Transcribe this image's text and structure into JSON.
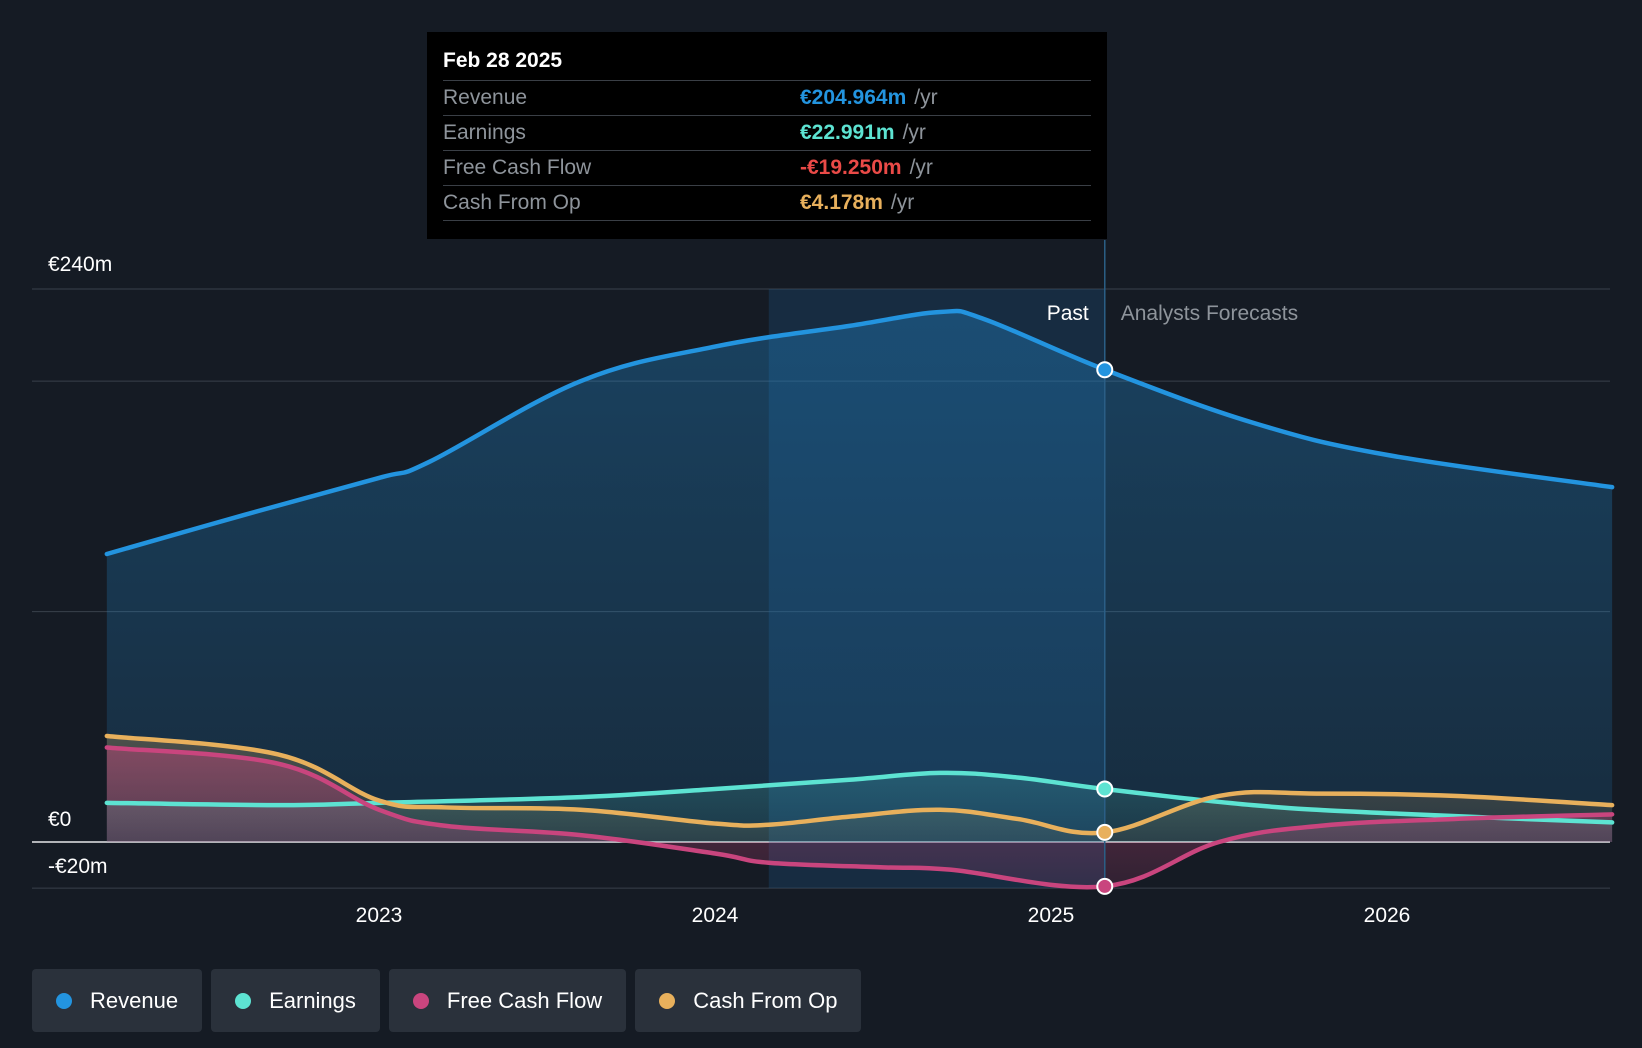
{
  "colors": {
    "revenue": "#2394df",
    "earnings": "#5de3d2",
    "fcf": "#c9457e",
    "cfo": "#e8b05c",
    "fcf_text": "#ea4a47"
  },
  "tooltip": {
    "date": "Feb 28 2025",
    "rows": [
      {
        "label": "Revenue",
        "value": "€204.964m",
        "unit": "/yr"
      },
      {
        "label": "Earnings",
        "value": "€22.991m",
        "unit": "/yr"
      },
      {
        "label": "Free Cash Flow",
        "value": "-€19.250m",
        "unit": "/yr"
      },
      {
        "label": "Cash From Op",
        "value": "€4.178m",
        "unit": "/yr"
      }
    ]
  },
  "legend": [
    {
      "label": "Revenue",
      "key": "revenue"
    },
    {
      "label": "Earnings",
      "key": "earnings"
    },
    {
      "label": "Free Cash Flow",
      "key": "fcf"
    },
    {
      "label": "Cash From Op",
      "key": "cfo"
    }
  ],
  "chart_data": {
    "type": "line",
    "title": "",
    "xlabel": "",
    "ylabel": "",
    "ylim": [
      -20,
      240
    ],
    "xlim": [
      2022.19,
      2026.67
    ],
    "x_ticks": [
      2023,
      2024,
      2025,
      2026
    ],
    "x_tick_labels": [
      "2023",
      "2024",
      "2025",
      "2026"
    ],
    "y_axis_labels": [
      {
        "value": 240,
        "label": "€240m"
      },
      {
        "value": 0,
        "label": "€0"
      },
      {
        "value": -20,
        "label": "-€20m"
      }
    ],
    "gridlines": [
      240,
      200,
      100,
      0,
      -20
    ],
    "past_label": "Past",
    "forecast_label": "Analysts Forecasts",
    "divider_x": 2025.16,
    "highlight_start_x": 2024.16,
    "series": [
      {
        "name": "Revenue",
        "key": "revenue",
        "points": [
          [
            2022.19,
            125
          ],
          [
            2022.6,
            142
          ],
          [
            2023.0,
            158
          ],
          [
            2023.15,
            165
          ],
          [
            2023.6,
            200
          ],
          [
            2024.0,
            215
          ],
          [
            2024.4,
            224
          ],
          [
            2024.67,
            230
          ],
          [
            2024.8,
            227
          ],
          [
            2025.16,
            205
          ],
          [
            2025.6,
            182
          ],
          [
            2026.0,
            168
          ],
          [
            2026.67,
            154
          ]
        ]
      },
      {
        "name": "Earnings",
        "key": "earnings",
        "points": [
          [
            2022.19,
            17
          ],
          [
            2022.7,
            16
          ],
          [
            2023.0,
            17
          ],
          [
            2023.6,
            19.5
          ],
          [
            2024.0,
            23
          ],
          [
            2024.4,
            27
          ],
          [
            2024.67,
            30
          ],
          [
            2024.9,
            28
          ],
          [
            2025.16,
            23
          ],
          [
            2025.6,
            16
          ],
          [
            2026.0,
            12.5
          ],
          [
            2026.67,
            8.5
          ]
        ]
      },
      {
        "name": "Free Cash Flow",
        "key": "fcf",
        "points": [
          [
            2022.19,
            41
          ],
          [
            2022.7,
            34
          ],
          [
            2023.0,
            14
          ],
          [
            2023.2,
            7
          ],
          [
            2023.6,
            3
          ],
          [
            2024.0,
            -5
          ],
          [
            2024.16,
            -9
          ],
          [
            2024.5,
            -11
          ],
          [
            2024.7,
            -12
          ],
          [
            2025.16,
            -19.25
          ],
          [
            2025.5,
            0
          ],
          [
            2025.8,
            7
          ],
          [
            2026.2,
            10
          ],
          [
            2026.67,
            12
          ]
        ]
      },
      {
        "name": "Cash From Op",
        "key": "cfo",
        "points": [
          [
            2022.19,
            46
          ],
          [
            2022.7,
            38
          ],
          [
            2023.0,
            18
          ],
          [
            2023.2,
            15
          ],
          [
            2023.6,
            14
          ],
          [
            2024.0,
            8
          ],
          [
            2024.16,
            7.5
          ],
          [
            2024.4,
            11
          ],
          [
            2024.67,
            14
          ],
          [
            2024.9,
            10
          ],
          [
            2025.16,
            4.178
          ],
          [
            2025.5,
            20
          ],
          [
            2025.8,
            21
          ],
          [
            2026.2,
            20
          ],
          [
            2026.67,
            16
          ]
        ]
      }
    ],
    "markers": [
      {
        "series": "revenue",
        "x": 2025.16,
        "y": 204.964
      },
      {
        "series": "earnings",
        "x": 2025.16,
        "y": 22.991
      },
      {
        "series": "cfo",
        "x": 2025.16,
        "y": 4.178
      },
      {
        "series": "fcf",
        "x": 2025.16,
        "y": -19.25
      }
    ]
  }
}
